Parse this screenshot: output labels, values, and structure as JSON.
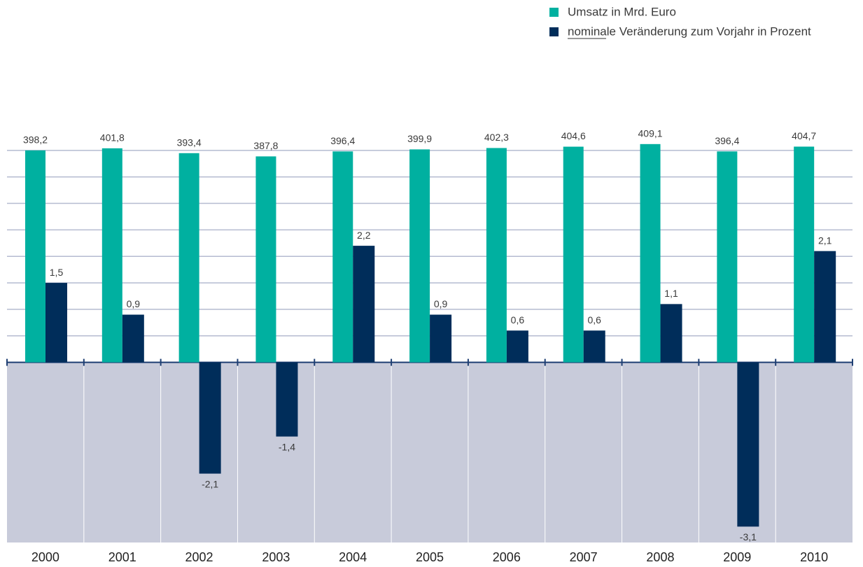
{
  "chart_data": {
    "type": "bar",
    "categories": [
      "2000",
      "2001",
      "2002",
      "2003",
      "2004",
      "2005",
      "2006",
      "2007",
      "2008",
      "2009",
      "2010"
    ],
    "series": [
      {
        "name": "Umsatz in Mrd. Euro",
        "color": "#00b0a0",
        "axis": "y2",
        "values": [
          398.2,
          401.8,
          393.4,
          387.8,
          396.4,
          399.9,
          402.3,
          404.6,
          409.1,
          396.4,
          404.7
        ],
        "value_labels": [
          "398,2",
          "401,8",
          "393,4",
          "387,8",
          "396,4",
          "399,9",
          "402,3",
          "404,6",
          "409,1",
          "396,4",
          "404,7"
        ]
      },
      {
        "name": "nominale Veränderung zum Vorjahr in Prozent",
        "color": "#002d5a",
        "values": [
          1.5,
          0.9,
          -2.1,
          -1.4,
          2.2,
          0.9,
          0.6,
          0.6,
          1.1,
          -3.1,
          2.1
        ],
        "value_labels": [
          "1,5",
          "0,9",
          "-2,1",
          "-1,4",
          "2,2",
          "0,9",
          "0,6",
          "0,6",
          "1,1",
          "-3,1",
          "2,1"
        ]
      }
    ],
    "ylim": [
      -3.4,
      4.5
    ],
    "yticks": [
      0,
      0.5,
      1,
      1.5,
      2,
      2.5,
      3,
      3.5,
      4
    ],
    "y2lim": [
      -280,
      444
    ],
    "grid": true,
    "legend": "top-right"
  }
}
